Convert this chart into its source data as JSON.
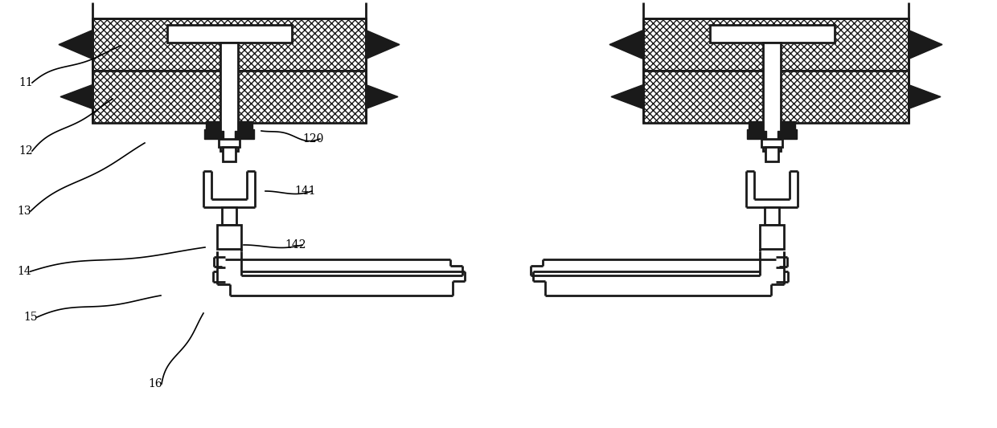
{
  "bg_color": "#ffffff",
  "line_color": "#1a1a1a",
  "fig_width": 12.4,
  "fig_height": 5.33,
  "lw_main": 2.0,
  "lw_thin": 1.3
}
